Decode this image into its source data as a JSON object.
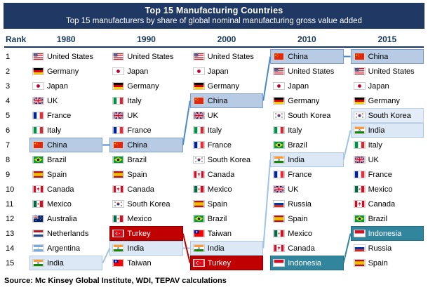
{
  "title": {
    "line1": "Top 15 Manufacturing Countries",
    "line2": "Top 15 manufacturers by share of global nominal manufacturing gross value added"
  },
  "colors": {
    "title_bg": "#1F3864",
    "header_text": "#17375E"
  },
  "highlight_colors": {
    "china": {
      "bg": "#B7CCE4",
      "fg": "#000000",
      "bd": "#7F9FC6"
    },
    "india": {
      "bg": "#DCE8F5",
      "fg": "#000000",
      "bd": "#AEC8E4"
    },
    "light": {
      "bg": "#E4EDF7",
      "fg": "#000000",
      "bd": "#C4D6EA"
    },
    "turkey": {
      "bg": "#C00000",
      "fg": "#FFFFFF",
      "bd": "#900000"
    },
    "indonesia": {
      "bg": "#31859C",
      "fg": "#FFFFFF",
      "bd": "#1F6E86"
    }
  },
  "chart_data": {
    "type": "table",
    "columns": [
      "Rank",
      "1980",
      "1990",
      "2000",
      "2010",
      "2015"
    ],
    "ranks": [
      "1",
      "2",
      "3",
      "4",
      "5",
      "6",
      "7",
      "8",
      "9",
      "10",
      "11",
      "12",
      "13",
      "14",
      "15"
    ],
    "years": [
      {
        "label": "1980",
        "entries": [
          {
            "name": "United States",
            "flag": "us"
          },
          {
            "name": "Germany",
            "flag": "de"
          },
          {
            "name": "Japan",
            "flag": "jp"
          },
          {
            "name": "UK",
            "flag": "gb"
          },
          {
            "name": "France",
            "flag": "fr"
          },
          {
            "name": "Italy",
            "flag": "it"
          },
          {
            "name": "China",
            "flag": "cn",
            "hl": "china"
          },
          {
            "name": "Brazil",
            "flag": "br"
          },
          {
            "name": "Spain",
            "flag": "es"
          },
          {
            "name": "Canada",
            "flag": "ca"
          },
          {
            "name": "Mexico",
            "flag": "mx"
          },
          {
            "name": "Australia",
            "flag": "au"
          },
          {
            "name": "Netherlands",
            "flag": "nl"
          },
          {
            "name": "Argentina",
            "flag": "ar"
          },
          {
            "name": "India",
            "flag": "in",
            "hl": "india"
          }
        ]
      },
      {
        "label": "1990",
        "entries": [
          {
            "name": "United States",
            "flag": "us"
          },
          {
            "name": "Japan",
            "flag": "jp"
          },
          {
            "name": "Germany",
            "flag": "de"
          },
          {
            "name": "Italy",
            "flag": "it"
          },
          {
            "name": "UK",
            "flag": "gb"
          },
          {
            "name": "France",
            "flag": "fr"
          },
          {
            "name": "China",
            "flag": "cn",
            "hl": "china"
          },
          {
            "name": "Brazil",
            "flag": "br"
          },
          {
            "name": "Spain",
            "flag": "es"
          },
          {
            "name": "Canada",
            "flag": "ca"
          },
          {
            "name": "South Korea",
            "flag": "kr"
          },
          {
            "name": "Mexico",
            "flag": "mx"
          },
          {
            "name": "Turkey",
            "flag": "tr",
            "hl": "turkey"
          },
          {
            "name": "India",
            "flag": "in",
            "hl": "india"
          },
          {
            "name": "Taiwan",
            "flag": "tw"
          }
        ]
      },
      {
        "label": "2000",
        "entries": [
          {
            "name": "United States",
            "flag": "us"
          },
          {
            "name": "Japan",
            "flag": "jp"
          },
          {
            "name": "Germany",
            "flag": "de"
          },
          {
            "name": "China",
            "flag": "cn",
            "hl": "china"
          },
          {
            "name": "UK",
            "flag": "gb"
          },
          {
            "name": "Italy",
            "flag": "it"
          },
          {
            "name": "France",
            "flag": "fr"
          },
          {
            "name": "South Korea",
            "flag": "kr"
          },
          {
            "name": "Canada",
            "flag": "ca"
          },
          {
            "name": "Mexico",
            "flag": "mx"
          },
          {
            "name": "Spain",
            "flag": "es"
          },
          {
            "name": "Brazil",
            "flag": "br"
          },
          {
            "name": "Taiwan",
            "flag": "tw"
          },
          {
            "name": "India",
            "flag": "in",
            "hl": "india"
          },
          {
            "name": "Turkey",
            "flag": "tr",
            "hl": "turkey"
          }
        ]
      },
      {
        "label": "2010",
        "entries": [
          {
            "name": "China",
            "flag": "cn",
            "hl": "china"
          },
          {
            "name": "United States",
            "flag": "us"
          },
          {
            "name": "Japan",
            "flag": "jp"
          },
          {
            "name": "Germany",
            "flag": "de"
          },
          {
            "name": "South Korea",
            "flag": "kr"
          },
          {
            "name": "Italy",
            "flag": "it"
          },
          {
            "name": "Brazil",
            "flag": "br"
          },
          {
            "name": "India",
            "flag": "in",
            "hl": "india"
          },
          {
            "name": "France",
            "flag": "fr"
          },
          {
            "name": "UK",
            "flag": "gb"
          },
          {
            "name": "Russia",
            "flag": "ru"
          },
          {
            "name": "Spain",
            "flag": "es"
          },
          {
            "name": "Mexico",
            "flag": "mx"
          },
          {
            "name": "Canada",
            "flag": "ca"
          },
          {
            "name": "Indonesia",
            "flag": "id",
            "hl": "indonesia"
          }
        ]
      },
      {
        "label": "2015",
        "entries": [
          {
            "name": "China",
            "flag": "cn",
            "hl": "china"
          },
          {
            "name": "United States",
            "flag": "us"
          },
          {
            "name": "Japan",
            "flag": "jp"
          },
          {
            "name": "Germany",
            "flag": "de"
          },
          {
            "name": "South Korea",
            "flag": "kr",
            "hl": "light"
          },
          {
            "name": "India",
            "flag": "in",
            "hl": "india"
          },
          {
            "name": "Italy",
            "flag": "it"
          },
          {
            "name": "UK",
            "flag": "gb"
          },
          {
            "name": "France",
            "flag": "fr"
          },
          {
            "name": "Mexico",
            "flag": "mx"
          },
          {
            "name": "Canada",
            "flag": "ca"
          },
          {
            "name": "Brazil",
            "flag": "br"
          },
          {
            "name": "Indonesia",
            "flag": "id",
            "hl": "indonesia"
          },
          {
            "name": "Russia",
            "flag": "ru"
          },
          {
            "name": "Spain",
            "flag": "es"
          }
        ]
      }
    ],
    "trajectories": [
      {
        "name": "china",
        "color": "#4A89C8",
        "points": [
          [
            1,
            7
          ],
          [
            2,
            7
          ],
          [
            3,
            4
          ],
          [
            4,
            1
          ],
          [
            5,
            1
          ]
        ]
      },
      {
        "name": "india",
        "color": "#9DC3E6",
        "points": [
          [
            1,
            15
          ],
          [
            2,
            14
          ],
          [
            3,
            14
          ],
          [
            4,
            8
          ],
          [
            5,
            6
          ]
        ]
      },
      {
        "name": "turkey",
        "color": "#C00000",
        "points": [
          [
            2,
            13
          ],
          [
            3,
            15
          ]
        ]
      },
      {
        "name": "indonesia",
        "color": "#31859C",
        "points": [
          [
            4,
            15
          ],
          [
            5,
            13
          ]
        ]
      }
    ]
  },
  "source": "Source: Mc Kinsey Global Institute, WDI, TEPAV calculations"
}
